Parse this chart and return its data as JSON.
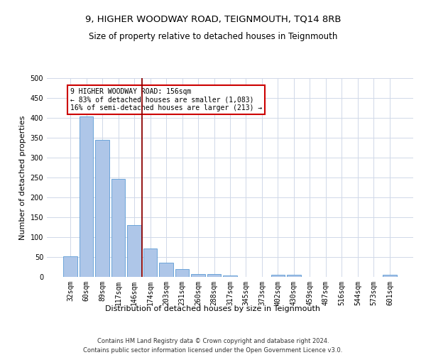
{
  "title_line1": "9, HIGHER WOODWAY ROAD, TEIGNMOUTH, TQ14 8RB",
  "title_line2": "Size of property relative to detached houses in Teignmouth",
  "xlabel": "Distribution of detached houses by size in Teignmouth",
  "ylabel": "Number of detached properties",
  "categories": [
    "32sqm",
    "60sqm",
    "89sqm",
    "117sqm",
    "146sqm",
    "174sqm",
    "203sqm",
    "231sqm",
    "260sqm",
    "288sqm",
    "317sqm",
    "345sqm",
    "373sqm",
    "402sqm",
    "430sqm",
    "459sqm",
    "487sqm",
    "516sqm",
    "544sqm",
    "573sqm",
    "601sqm"
  ],
  "values": [
    52,
    403,
    345,
    247,
    130,
    71,
    36,
    20,
    8,
    7,
    3,
    0,
    0,
    6,
    5,
    0,
    0,
    0,
    0,
    0,
    5
  ],
  "bar_color": "#aec6e8",
  "bar_edge_color": "#5b9bd5",
  "grid_color": "#d0d8e8",
  "vline_x": 4.5,
  "vline_color": "#8b0000",
  "annotation_text": "9 HIGHER WOODWAY ROAD: 156sqm\n← 83% of detached houses are smaller (1,083)\n16% of semi-detached houses are larger (213) →",
  "annotation_box_color": "#ffffff",
  "annotation_box_edge_color": "#cc0000",
  "ylim": [
    0,
    500
  ],
  "yticks": [
    0,
    50,
    100,
    150,
    200,
    250,
    300,
    350,
    400,
    450,
    500
  ],
  "footer_line1": "Contains HM Land Registry data © Crown copyright and database right 2024.",
  "footer_line2": "Contains public sector information licensed under the Open Government Licence v3.0.",
  "title1_fontsize": 9.5,
  "title2_fontsize": 8.5,
  "tick_fontsize": 7,
  "ylabel_fontsize": 8,
  "xlabel_fontsize": 8,
  "annotation_fontsize": 7,
  "footer_fontsize": 6
}
